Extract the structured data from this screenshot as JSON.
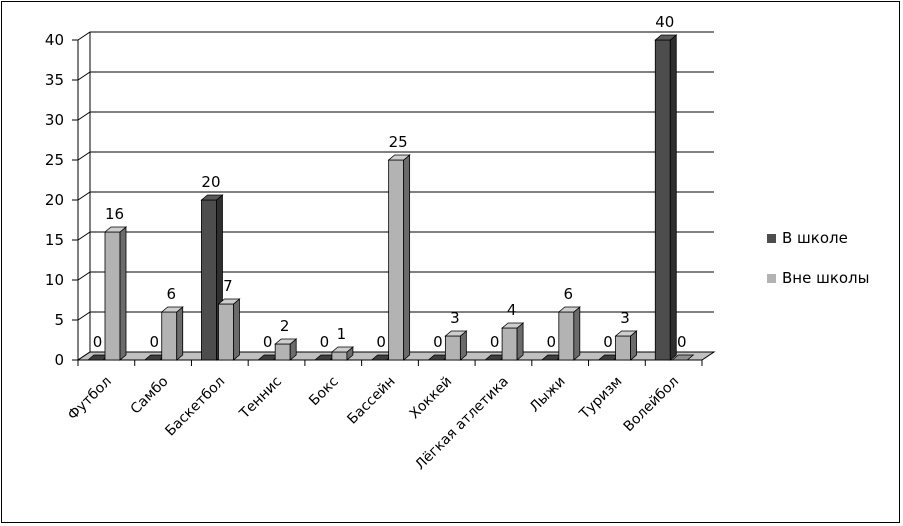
{
  "chart_data": {
    "type": "bar",
    "categories": [
      "Футбол",
      "Самбо",
      "Баскетбол",
      "Теннис",
      "Бокс",
      "Бассейн",
      "Хоккей",
      "Лёгкая атлетика",
      "Лыжи",
      "Туризм",
      "Волейбол"
    ],
    "series": [
      {
        "name": "В школе",
        "values": [
          0,
          0,
          20,
          0,
          0,
          0,
          0,
          0,
          0,
          0,
          40
        ],
        "color": "#4d4d4d"
      },
      {
        "name": "Вне школы",
        "values": [
          16,
          6,
          7,
          2,
          1,
          25,
          3,
          4,
          6,
          3,
          0
        ],
        "color": "#b3b3b3"
      }
    ],
    "y_ticks": [
      "0",
      "5",
      "10",
      "15",
      "20",
      "25",
      "30",
      "35",
      "40"
    ],
    "ylim": [
      0,
      40
    ],
    "grid": true,
    "legend_position": "right",
    "style": "3d-clustered-column"
  }
}
